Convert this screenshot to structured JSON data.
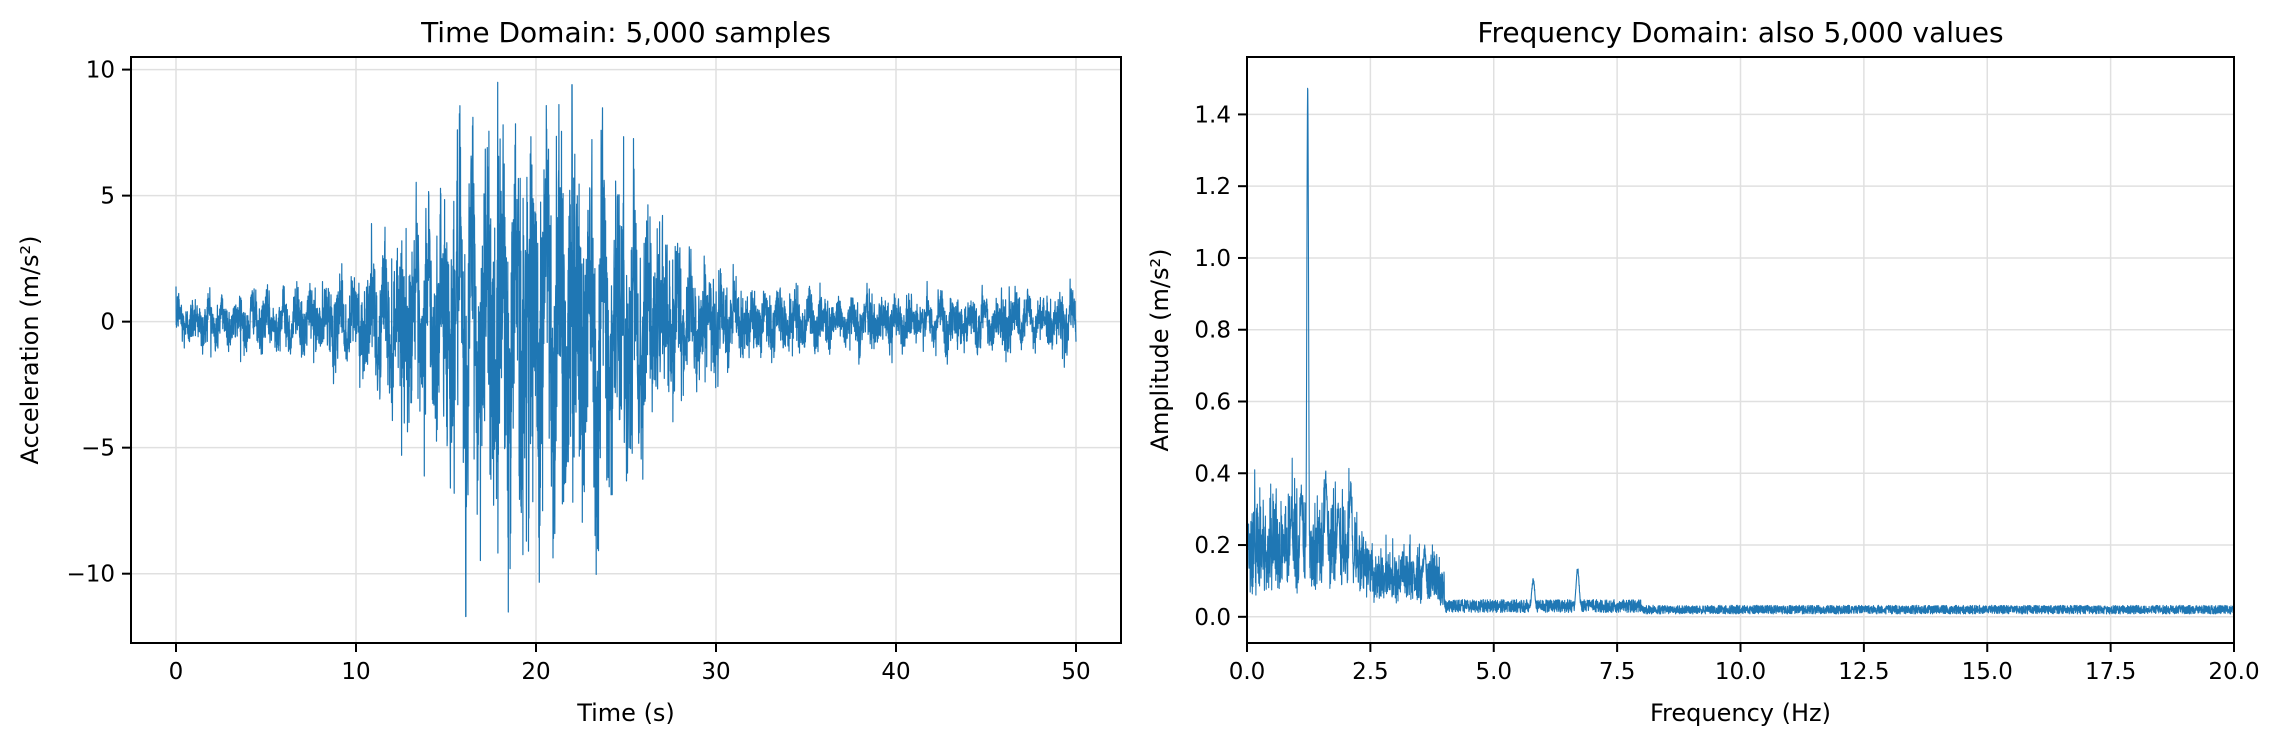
{
  "figure": {
    "line_color": "#1f77b4",
    "grid_color": "#e0e0e0",
    "axes_color": "#000000"
  },
  "chart_data": [
    {
      "type": "line",
      "title": "Time Domain: 5,000 samples",
      "xlabel": "Time (s)",
      "ylabel": "Acceleration (m/s²)",
      "xlim": [
        -2.5,
        52.5
      ],
      "ylim": [
        -12.75,
        10.5
      ],
      "xticks": [
        0,
        10,
        20,
        30,
        40,
        50
      ],
      "xtick_labels": [
        "0",
        "10",
        "20",
        "30",
        "40",
        "50"
      ],
      "yticks": [
        10,
        5,
        0,
        -5,
        -10
      ],
      "ytick_labels": [
        "10",
        "5",
        "0",
        "−5",
        "−10"
      ],
      "grid": true,
      "series": [
        {
          "name": "acceleration",
          "n_samples": 5000,
          "x_range": [
            0,
            50
          ],
          "description_values": {
            "baseline_amplitude": 0.8,
            "envelope_peak_amplitude": 5.5,
            "envelope_peak_time": 20,
            "dominant_frequency_hz": 1.23,
            "max_value": 9.4,
            "max_time": 22.0,
            "min_value": -11.7,
            "min_time": 16.1
          }
        }
      ]
    },
    {
      "type": "line",
      "title": "Frequency Domain: also 5,000 values",
      "xlabel": "Frequency (Hz)",
      "ylabel": "Amplitude (m/s²)",
      "xlim": [
        0,
        20
      ],
      "ylim": [
        -0.073,
        1.56
      ],
      "xticks": [
        0,
        2.5,
        5,
        7.5,
        10,
        12.5,
        15,
        17.5,
        20
      ],
      "xtick_labels": [
        "0.0",
        "2.5",
        "5.0",
        "7.5",
        "10.0",
        "12.5",
        "15.0",
        "17.5",
        "20.0"
      ],
      "yticks": [
        0,
        0.2,
        0.4,
        0.6,
        0.8,
        1.0,
        1.2,
        1.4
      ],
      "ytick_labels": [
        "0.0",
        "0.2",
        "0.4",
        "0.6",
        "0.8",
        "1.0",
        "1.2",
        "1.4"
      ],
      "grid": true,
      "series": [
        {
          "name": "amplitude spectrum",
          "n_values": 5000,
          "peaks": [
            {
              "x": 0.0,
              "y": 0.27
            },
            {
              "x": 0.9,
              "y": 0.3
            },
            {
              "x": 1.1,
              "y": 0.37
            },
            {
              "x": 1.23,
              "y": 1.48
            },
            {
              "x": 1.6,
              "y": 0.41
            },
            {
              "x": 1.85,
              "y": 0.32
            },
            {
              "x": 2.1,
              "y": 0.39
            },
            {
              "x": 3.6,
              "y": 0.2
            },
            {
              "x": 5.8,
              "y": 0.11
            },
            {
              "x": 6.7,
              "y": 0.14
            }
          ],
          "noise_floor_low": 0.06,
          "noise_floor_high": 0.02
        }
      ]
    }
  ]
}
